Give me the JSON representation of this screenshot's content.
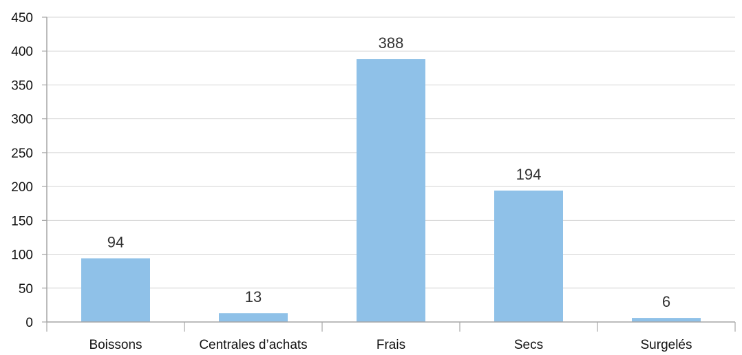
{
  "chart_data": {
    "type": "bar",
    "categories": [
      "Boissons",
      "Centrales d’achats",
      "Frais",
      "Secs",
      "Surgelés"
    ],
    "values": [
      94,
      13,
      388,
      194,
      6
    ],
    "data_labels": [
      "94",
      "13",
      "388",
      "194",
      "6"
    ],
    "title": "",
    "xlabel": "",
    "ylabel": "",
    "ylim": [
      0,
      450
    ],
    "yticks": [
      "0",
      "50",
      "100",
      "150",
      "200",
      "250",
      "300",
      "350",
      "400",
      "450"
    ],
    "grid": true,
    "legend": "none",
    "bar_color": "#8fc1e8"
  }
}
